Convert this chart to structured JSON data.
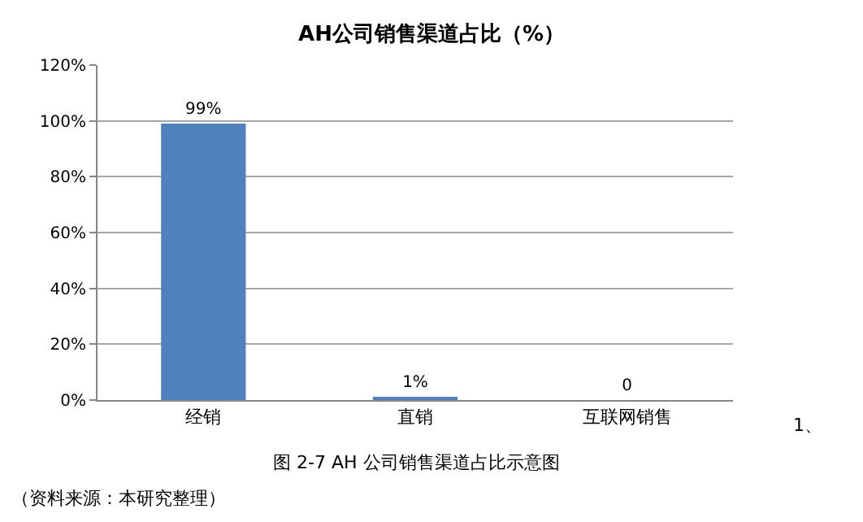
{
  "chart_data": {
    "type": "bar",
    "title": "AH公司销售渠道占比（%）",
    "categories": [
      "经销",
      "直销",
      "互联网销售"
    ],
    "values": [
      99,
      1,
      0
    ],
    "value_labels": [
      "99%",
      "1%",
      "0"
    ],
    "color": "#4f81bd",
    "ylim": [
      0,
      120
    ],
    "yticks": [
      {
        "value": 0,
        "label": "0%"
      },
      {
        "value": 20,
        "label": "20%"
      },
      {
        "value": 40,
        "label": "40%"
      },
      {
        "value": 60,
        "label": "60%"
      },
      {
        "value": 80,
        "label": "80%"
      },
      {
        "value": 100,
        "label": "100%"
      },
      {
        "value": 120,
        "label": "120%"
      }
    ],
    "grid": "y",
    "annotations": [
      "1、",
      "图 2-7 AH 公司销售渠道占比示意图",
      "（资料来源：本研究整理）"
    ]
  }
}
